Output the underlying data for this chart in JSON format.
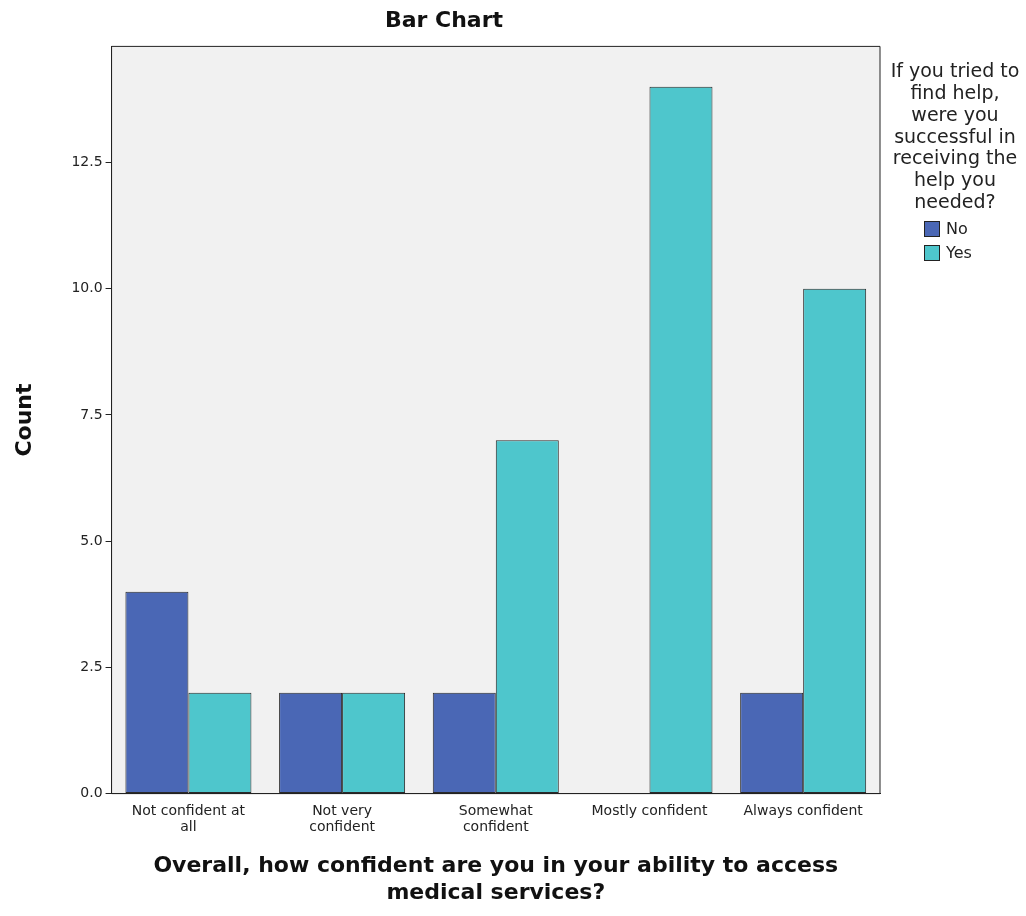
{
  "chart_data": {
    "type": "bar",
    "title": "Bar Chart",
    "xlabel": "Overall, how confident are you in your ability to access medical services?",
    "ylabel": "Count",
    "legend_title": "If you tried to find help, were you successful in receiving the help you needed?",
    "categories": [
      "Not confident at all",
      "Not very confident",
      "Somewhat confident",
      "Mostly confident",
      "Always confident"
    ],
    "series": [
      {
        "name": "No",
        "color": "#4a67b5",
        "values": [
          4,
          2,
          2,
          0,
          2
        ]
      },
      {
        "name": "Yes",
        "color": "#4ec6cc",
        "values": [
          2,
          2,
          7,
          14,
          10
        ]
      }
    ],
    "ylim": [
      0,
      14.8
    ],
    "yticks": [
      {
        "value": 0,
        "label": "0.0"
      },
      {
        "value": 2.5,
        "label": "2.5"
      },
      {
        "value": 5,
        "label": "5.0"
      },
      {
        "value": 7.5,
        "label": "7.5"
      },
      {
        "value": 10,
        "label": "10.0"
      },
      {
        "value": 12.5,
        "label": "12.5"
      }
    ],
    "grid": false,
    "legend": "right"
  }
}
